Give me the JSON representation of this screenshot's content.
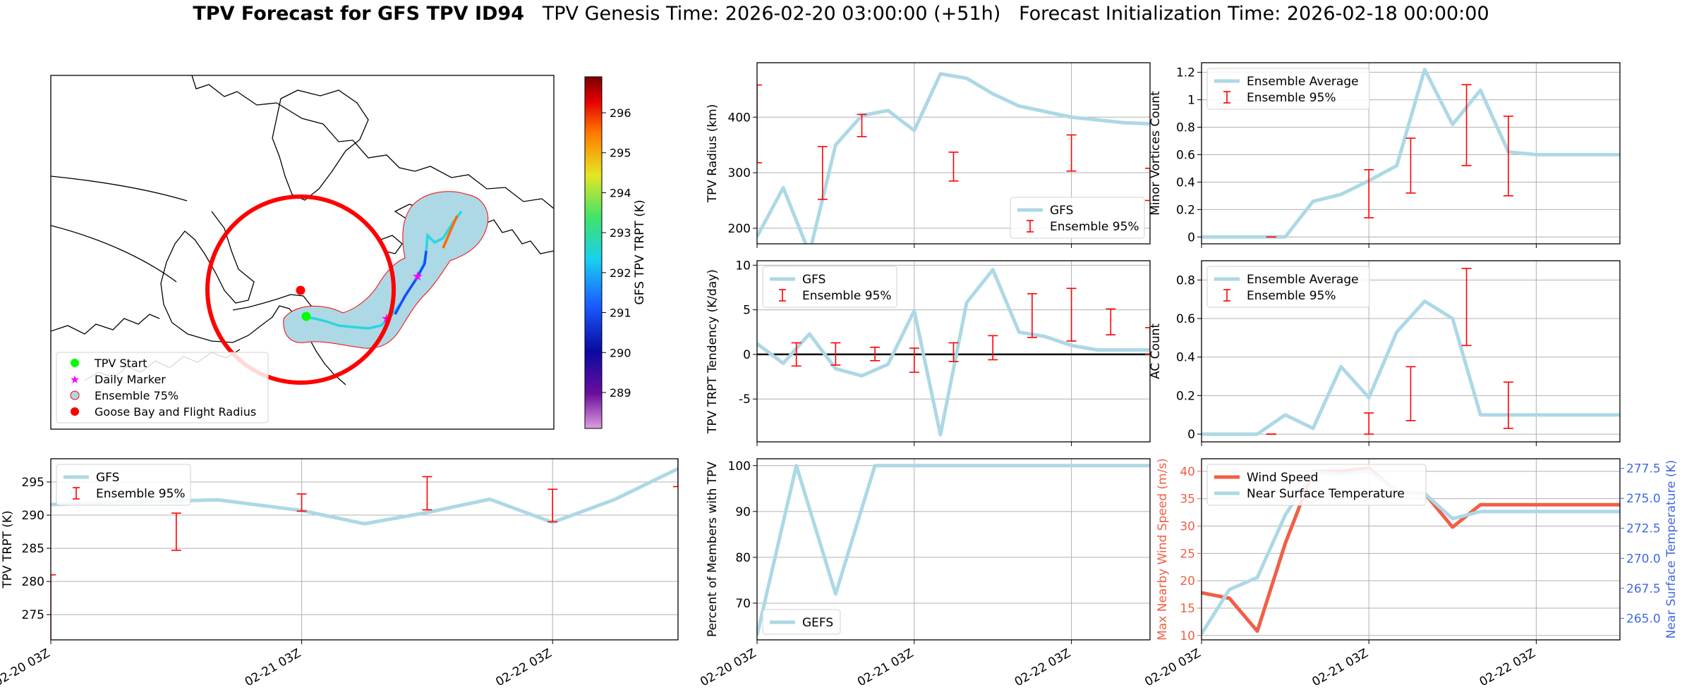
{
  "header": {
    "title_bold": "TPV Forecast for GFS TPV ID94",
    "genesis": "TPV Genesis Time: 2026-02-20 03:00:00 (+51h)",
    "init": "Forecast Initialization Time: 2026-02-18 00:00:00"
  },
  "colors": {
    "gfs": "#add8e6",
    "ensemble": "#ff0000",
    "wind": "#f05f46",
    "temp_axis": "#4169e1",
    "zero_line": "#000000",
    "grid": "#b0b0b0"
  },
  "map": {
    "colorbar_label": "GFS TPV TRPT (K)",
    "colorbar_ticks": [
      289,
      290,
      291,
      292,
      293,
      294,
      295,
      296
    ],
    "colorbar_range": [
      288.1,
      296.9
    ],
    "legend": [
      "TPV Start",
      "Daily Marker",
      "Ensemble 75%",
      "Goose Bay and Flight Radius"
    ]
  },
  "chart_data": [
    {
      "id": "radius",
      "type": "line",
      "ylabel": "TPV Radius (km)",
      "xlim": [
        0,
        15
      ],
      "ylim": [
        172,
        498
      ],
      "yticks": [
        200,
        300,
        400
      ],
      "xticks": [
        0,
        6,
        12
      ],
      "series": [
        {
          "name": "GFS",
          "x": [
            0,
            1,
            2,
            3,
            4,
            5,
            6,
            7,
            8,
            9,
            10,
            11,
            12,
            13,
            14,
            15
          ],
          "y": [
            185,
            273,
            155,
            350,
            403,
            412,
            376,
            478,
            470,
            442,
            420,
            410,
            400,
            395,
            390,
            388
          ]
        }
      ],
      "errorbars": {
        "name": "Ensemble 95%",
        "x": [
          0,
          2.5,
          4,
          7.5,
          12,
          15
        ],
        "low": [
          318,
          252,
          365,
          285,
          303,
          250
        ],
        "high": [
          458,
          347,
          405,
          337,
          368,
          308
        ]
      },
      "legend": [
        "GFS",
        "Ensemble 95%"
      ]
    },
    {
      "id": "minor",
      "type": "line",
      "ylabel": "Minor Vortices Count",
      "xlim": [
        0,
        15
      ],
      "ylim": [
        -0.05,
        1.27
      ],
      "yticks": [
        0.0,
        0.2,
        0.4,
        0.6,
        0.8,
        1.0,
        1.2
      ],
      "xticks": [
        0,
        6,
        12
      ],
      "series": [
        {
          "name": "Ensemble Average",
          "x": [
            0,
            1,
            2,
            3,
            4,
            5,
            6,
            7,
            8,
            9,
            10,
            11,
            12,
            13,
            14,
            15
          ],
          "y": [
            0,
            0,
            0,
            0,
            0.26,
            0.31,
            0.41,
            0.52,
            1.22,
            0.82,
            1.07,
            0.62,
            0.6,
            0.6,
            0.6,
            0.6
          ]
        }
      ],
      "errorbars": {
        "name": "Ensemble 95%",
        "x": [
          2.5,
          6,
          7.5,
          9.5,
          11
        ],
        "low": [
          0,
          0.14,
          0.32,
          0.52,
          0.3
        ],
        "high": [
          0,
          0.49,
          0.72,
          1.11,
          0.88
        ]
      },
      "legend": [
        "Ensemble Average",
        "Ensemble 95%"
      ]
    },
    {
      "id": "tendency",
      "type": "line",
      "ylabel": "TPV TRPT Tendency (K/day)",
      "xlim": [
        0,
        15
      ],
      "ylim": [
        -9.8,
        10.5
      ],
      "yticks": [
        -5,
        0,
        5,
        10
      ],
      "xticks": [
        0,
        6,
        12
      ],
      "hline": 0,
      "series": [
        {
          "name": "GFS",
          "x": [
            0,
            1,
            2,
            3,
            4,
            5,
            6,
            7,
            8,
            9,
            10,
            11,
            12,
            13,
            14,
            15
          ],
          "y": [
            1.2,
            -1.0,
            2.3,
            -1.6,
            -2.4,
            -1.1,
            4.9,
            -9.0,
            5.8,
            9.5,
            2.5,
            2.0,
            1.0,
            0.5,
            0.5,
            0.5
          ]
        }
      ],
      "errorbars": {
        "name": "Ensemble 95%",
        "x": [
          1.5,
          3,
          4.5,
          6,
          7.5,
          9,
          10.5,
          12,
          13.5,
          15
        ],
        "low": [
          -1.3,
          -1.2,
          -0.7,
          -2.0,
          -0.8,
          -0.6,
          1.9,
          1.5,
          2.2,
          0.0
        ],
        "high": [
          1.3,
          1.3,
          0.8,
          0.7,
          1.3,
          2.1,
          6.8,
          7.4,
          5.1,
          3.0
        ]
      },
      "legend": [
        "GFS",
        "Ensemble 95%"
      ]
    },
    {
      "id": "ac",
      "type": "line",
      "ylabel": "AC Count",
      "xlim": [
        0,
        15
      ],
      "ylim": [
        -0.04,
        0.9
      ],
      "yticks": [
        0.0,
        0.2,
        0.4,
        0.6,
        0.8
      ],
      "xticks": [
        0,
        6,
        12
      ],
      "series": [
        {
          "name": "Ensemble Average",
          "x": [
            0,
            1,
            2,
            3,
            4,
            5,
            6,
            7,
            8,
            9,
            10,
            11,
            12,
            13,
            14,
            15
          ],
          "y": [
            0,
            0,
            0,
            0.1,
            0.03,
            0.35,
            0.19,
            0.53,
            0.69,
            0.6,
            0.1,
            0.1,
            0.1,
            0.1,
            0.1,
            0.1
          ]
        }
      ],
      "errorbars": {
        "name": "Ensemble 95%",
        "x": [
          2.5,
          6,
          7.5,
          9.5,
          11
        ],
        "low": [
          0,
          0,
          0.07,
          0.46,
          0.03
        ],
        "high": [
          0,
          0.11,
          0.35,
          0.86,
          0.27
        ]
      },
      "legend": [
        "Ensemble Average",
        "Ensemble 95%"
      ]
    },
    {
      "id": "trpt",
      "type": "line",
      "ylabel": "TPV TRPT (K)",
      "xlim": [
        0,
        15
      ],
      "ylim": [
        271.2,
        298.5
      ],
      "yticks": [
        275,
        280,
        285,
        290,
        295
      ],
      "xticks": [
        0,
        6,
        12
      ],
      "xticklabels": [
        "02-20 03Z",
        "02-21 03Z",
        "02-22 03Z"
      ],
      "series": [
        {
          "name": "GFS",
          "x": [
            0,
            2,
            4,
            6,
            7.5,
            9,
            10.5,
            12,
            13.5,
            15
          ],
          "y": [
            291.6,
            292.0,
            292.3,
            290.7,
            288.7,
            290.4,
            292.4,
            288.9,
            292.4,
            297.0
          ]
        }
      ],
      "errorbars": {
        "name": "Ensemble 95%",
        "x": [
          0,
          3,
          6,
          9,
          12,
          15
        ],
        "low": [
          270.8,
          284.7,
          290.6,
          290.8,
          289.0,
          294.3
        ],
        "high": [
          281.0,
          290.3,
          293.2,
          295.8,
          293.9,
          299.0
        ]
      },
      "legend": [
        "GFS",
        "Ensemble 95%"
      ]
    },
    {
      "id": "percent",
      "type": "line",
      "ylabel": "Percent of Members with TPV",
      "xlim": [
        0,
        15
      ],
      "ylim": [
        62,
        101.5
      ],
      "yticks": [
        70,
        80,
        90,
        100
      ],
      "xticks": [
        0,
        6,
        12
      ],
      "xticklabels": [
        "02-20 03Z",
        "02-21 03Z",
        "02-22 03Z"
      ],
      "series": [
        {
          "name": "GEFS",
          "x": [
            0,
            1.5,
            3,
            4.5,
            6,
            7.5,
            9,
            10.5,
            12,
            13.5,
            15
          ],
          "y": [
            63,
            100,
            72,
            100,
            100,
            100,
            100,
            100,
            100,
            100,
            100
          ]
        }
      ],
      "legend": [
        "GEFS"
      ]
    },
    {
      "id": "wind_temp",
      "type": "line",
      "ylabel": "Max Nearby Wind Speed (m/s)",
      "y2label": "Near Surface Temperature (K)",
      "xlim": [
        0,
        15
      ],
      "ylim": [
        9.2,
        42.3
      ],
      "yticks": [
        10,
        15,
        20,
        25,
        30,
        35,
        40
      ],
      "y2lim": [
        263.2,
        278.3
      ],
      "y2ticks": [
        265.0,
        267.5,
        270.0,
        272.5,
        275.0,
        277.5
      ],
      "y2ticklabels": [
        "265.0",
        "267.5",
        "270.0",
        "272.5",
        "275.0",
        "277.5"
      ],
      "xticks": [
        0,
        6,
        12
      ],
      "xticklabels": [
        "02-20 03Z",
        "02-21 03Z",
        "02-22 03Z"
      ],
      "series": [
        {
          "name": "Wind Speed",
          "axis": "left",
          "x": [
            0,
            1,
            2,
            3,
            4,
            5,
            6,
            7,
            8,
            9,
            10,
            11,
            12,
            13,
            14,
            15
          ],
          "y": [
            17.8,
            16.8,
            10.8,
            26.8,
            40.0,
            40.0,
            40.6,
            36.2,
            36.0,
            29.8,
            33.9,
            33.9,
            33.9,
            33.9,
            33.9,
            33.9
          ]
        },
        {
          "name": "Near Surface Temperature",
          "axis": "right",
          "x": [
            0,
            1,
            2,
            3,
            4,
            5,
            6,
            7,
            8,
            9,
            10,
            11,
            12,
            13,
            14,
            15
          ],
          "y": [
            263.7,
            267.4,
            268.4,
            273.6,
            277.2,
            277.0,
            277.3,
            275.6,
            275.4,
            273.3,
            273.9,
            273.9,
            273.9,
            273.9,
            273.9,
            273.9
          ]
        }
      ],
      "legend": [
        "Wind Speed",
        "Near Surface Temperature"
      ]
    }
  ]
}
